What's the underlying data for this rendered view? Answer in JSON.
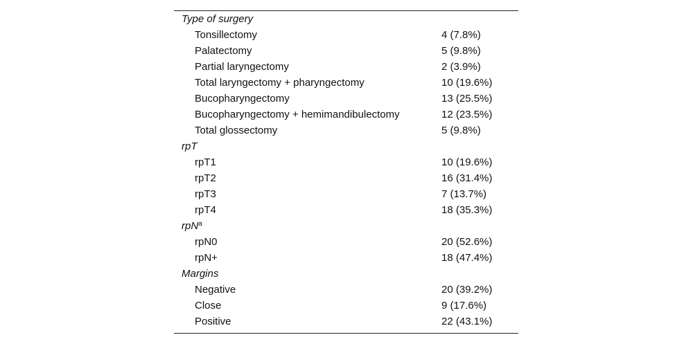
{
  "table": {
    "sections": [
      {
        "title": "Type of surgery",
        "rows": [
          [
            "Tonsillectomy",
            "4 (7.8%)"
          ],
          [
            "Palatectomy",
            "5 (9.8%)"
          ],
          [
            "Partial laryngectomy",
            "2 (3.9%)"
          ],
          [
            "Total laryngectomy + pharyngectomy",
            "10 (19.6%)"
          ],
          [
            "Bucopharyngectomy",
            "13 (25.5%)"
          ],
          [
            "Bucopharyngectomy + hemimandibulectomy",
            "12 (23.5%)"
          ],
          [
            "Total glossectomy",
            "5 (9.8%)"
          ]
        ]
      },
      {
        "title": "rpT",
        "rows": [
          [
            "rpT1",
            "10 (19.6%)"
          ],
          [
            "rpT2",
            "16 (31.4%)"
          ],
          [
            "rpT3",
            "7 (13.7%)"
          ],
          [
            "rpT4",
            "18 (35.3%)"
          ]
        ]
      },
      {
        "title": "rpN",
        "sup": "a",
        "rows": [
          [
            "rpN0",
            "20 (52.6%)"
          ],
          [
            "rpN+",
            "18 (47.4%)"
          ]
        ]
      },
      {
        "title": "Margins",
        "rows": [
          [
            "Negative",
            "20 (39.2%)"
          ],
          [
            "Close",
            "9 (17.6%)"
          ],
          [
            "Positive",
            "22 (43.1%)"
          ]
        ]
      }
    ]
  }
}
